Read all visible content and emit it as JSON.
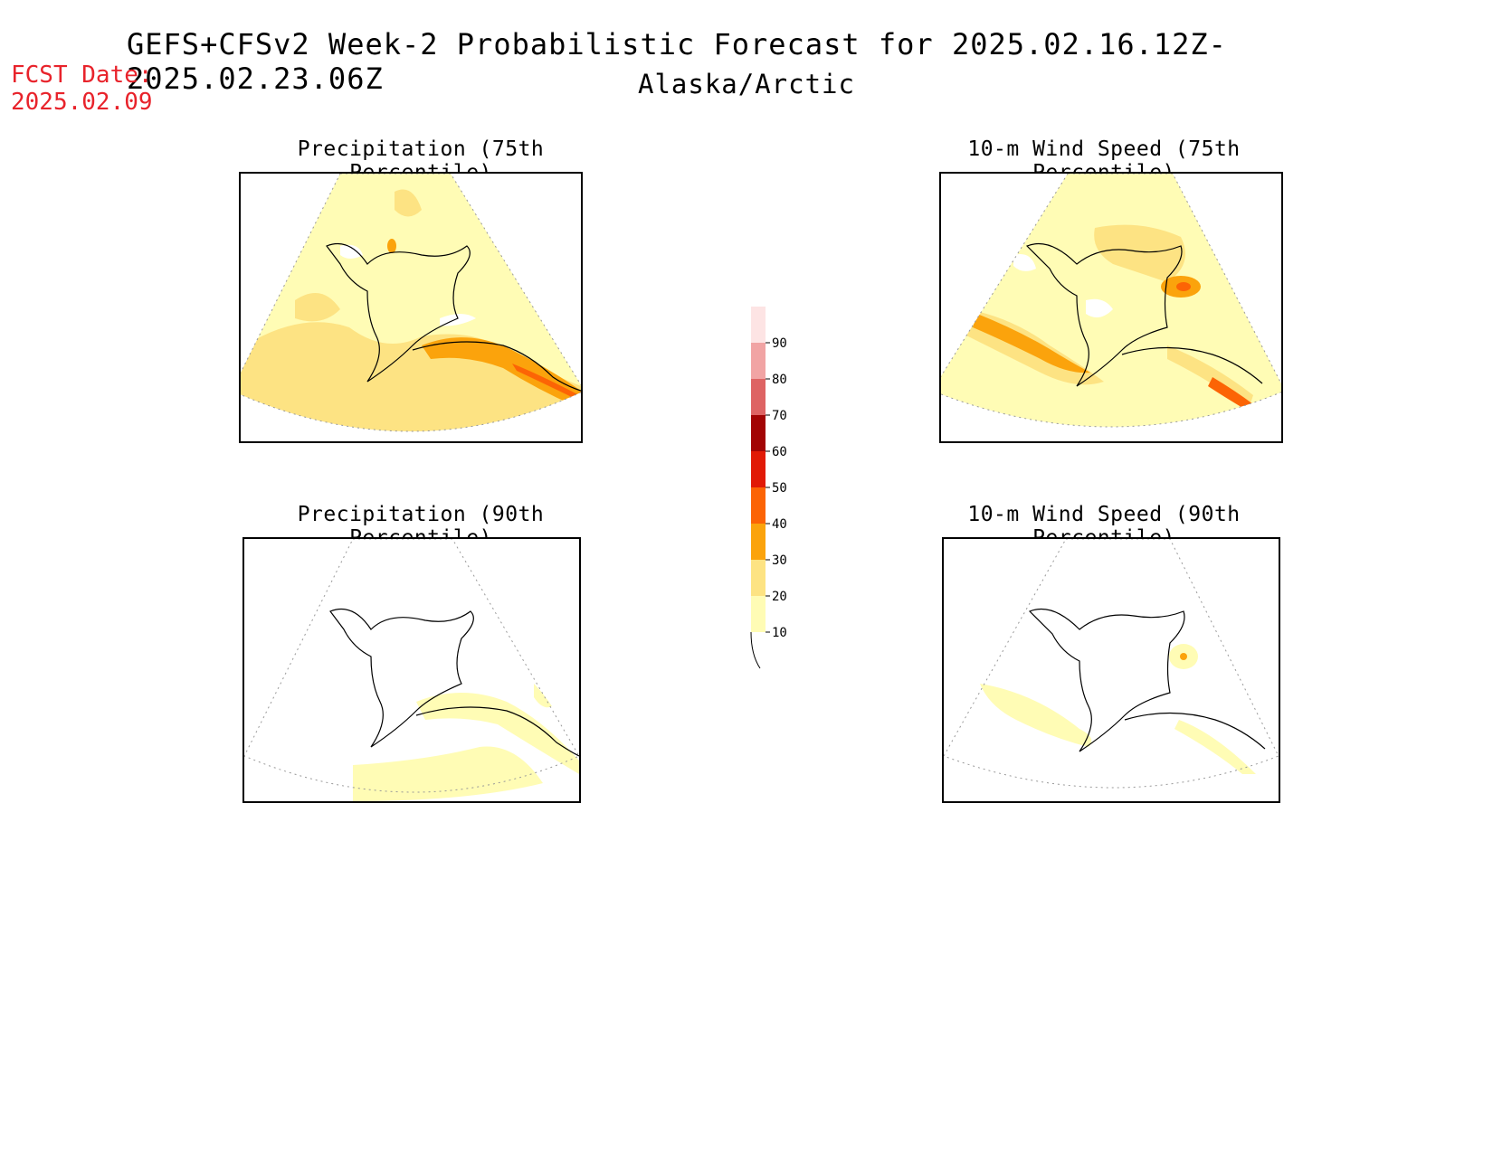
{
  "header": {
    "title": "GEFS+CFSv2 Week-2 Probabilistic Forecast for 2025.02.16.12Z-2025.02.23.06Z",
    "subtitle": "Alaska/Arctic",
    "fcst_label": "FCST Date:",
    "fcst_date": "2025.02.09"
  },
  "panels": [
    {
      "id": "precip75",
      "title": "Precipitation (75th Percentile)"
    },
    {
      "id": "wind75",
      "title": "10-m Wind Speed (75th Percentile)"
    },
    {
      "id": "precip90",
      "title": "Precipitation (90th Percentile)"
    },
    {
      "id": "wind90",
      "title": "10-m Wind Speed (90th Percentile)"
    }
  ],
  "colorbar": {
    "levels": [
      "10",
      "20",
      "30",
      "40",
      "50",
      "60",
      "70",
      "80",
      "90"
    ],
    "colors": [
      "#fffcb5",
      "#fde383",
      "#fba30c",
      "#fc6405",
      "#e11a06",
      "#a20404",
      "#de6464",
      "#f1a4a4",
      "#fde4e4"
    ]
  }
}
